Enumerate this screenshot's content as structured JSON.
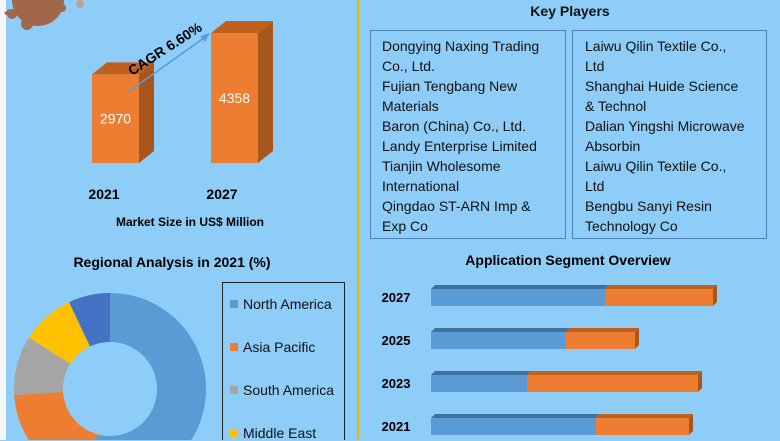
{
  "colors": {
    "background": "#8ecdf8",
    "orange": "#ed7d31",
    "blue": "#5b9bd5",
    "gray": "#a5a5a5",
    "yellow": "#ffc000",
    "darkblue": "#4472c4",
    "divider": "#f2b800"
  },
  "decor": {
    "virus": "virus-illustration"
  },
  "chart_data": [
    {
      "type": "bar",
      "subtype": "3d-column",
      "categories": [
        "2021",
        "2027"
      ],
      "values": [
        2970,
        4358
      ],
      "data_labels": [
        "2970",
        "4358"
      ],
      "annotation": "CAGR 6.60%",
      "xlabel": "Market Size in US$ Million"
    },
    {
      "type": "pie",
      "subtype": "donut",
      "title": "Regional Analysis in 2021 (%)",
      "slices": [
        {
          "name": "North America",
          "value": 53,
          "color": "#5b9bd5"
        },
        {
          "name": "Asia Pacific",
          "value": 21,
          "color": "#ed7d31"
        },
        {
          "name": "South America",
          "value": 10,
          "color": "#a5a5a5"
        },
        {
          "name": "Middle East",
          "value": 9,
          "color": "#ffc000"
        },
        {
          "value": 7,
          "color": "#4472c4"
        }
      ],
      "legend": "right"
    },
    {
      "type": "bar",
      "subtype": "stacked-horizontal-3d",
      "title": "Application Segment Overview",
      "categories": [
        "2027",
        "2025",
        "2023",
        "2021"
      ],
      "series": [
        {
          "color": "#5b9bd5",
          "values": [
            58,
            45,
            32,
            55
          ]
        },
        {
          "color": "#ed7d31",
          "values": [
            36,
            23,
            57,
            31
          ]
        }
      ]
    }
  ],
  "key_players": {
    "title": "Key Players",
    "left": [
      "Dongying Naxing Trading",
      "Co., Ltd.",
      "Fujian Tengbang New",
      "Materials",
      "Baron (China) Co., Ltd.",
      "Landy Enterprise Limited",
      "Tianjin Wholesome",
      "International",
      "Qingdao ST-ARN Imp &",
      "Exp Co"
    ],
    "right": [
      "Laiwu Qilin Textile Co.,",
      "Ltd",
      "Shanghai Huide Science",
      "& Technol",
      "Dalian Yingshi Microwave",
      "Absorbin",
      "Laiwu Qilin Textile Co.,",
      "Ltd",
      "Bengbu Sanyi Resin",
      "Technology Co"
    ]
  }
}
